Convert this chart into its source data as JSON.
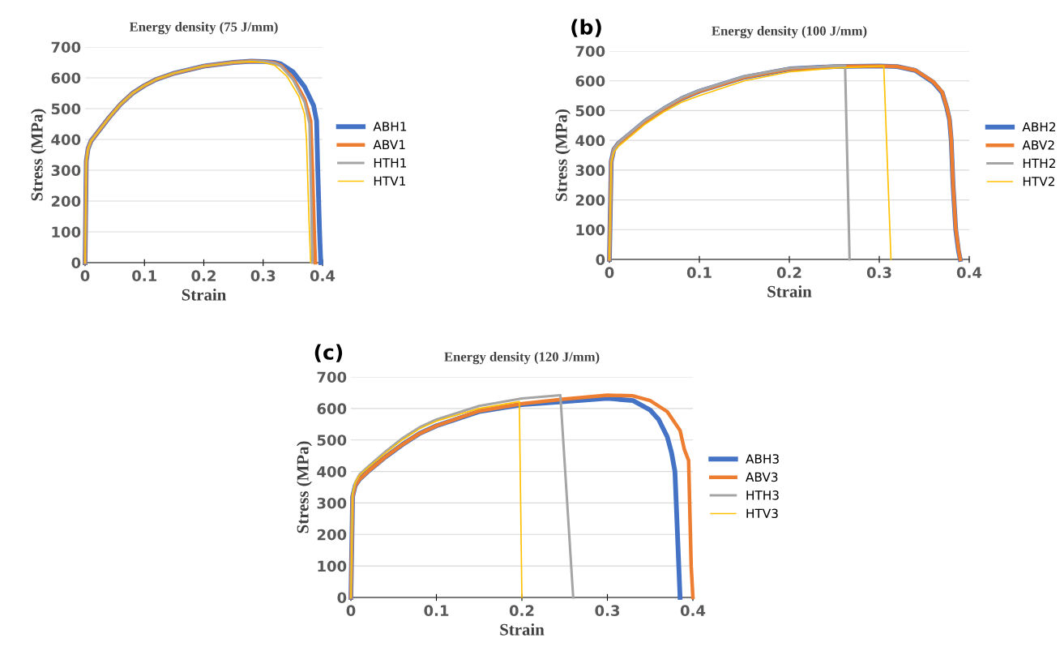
{
  "chart_data": [
    {
      "type": "line",
      "title": "Energy density (75 J/mm)",
      "xlabel": "Strain",
      "ylabel": "Stress (MPa)",
      "xlim": [
        0,
        0.4
      ],
      "ylim": [
        0,
        700
      ],
      "xticks": [
        0,
        0.1,
        0.2,
        0.3,
        0.4
      ],
      "yticks": [
        0,
        100,
        200,
        300,
        400,
        500,
        600,
        700
      ],
      "grid": "y",
      "legend": "right",
      "marker": "none",
      "line_style": "solid",
      "series": [
        {
          "name": "ABH1",
          "color": "#4472c4",
          "x": [
            0,
            0.002,
            0.005,
            0.01,
            0.02,
            0.04,
            0.06,
            0.08,
            0.1,
            0.12,
            0.15,
            0.2,
            0.25,
            0.28,
            0.3,
            0.32,
            0.33,
            0.35,
            0.37,
            0.385,
            0.39,
            0.392,
            0.395,
            0.397
          ],
          "values": [
            0,
            330,
            370,
            395,
            420,
            470,
            515,
            550,
            575,
            595,
            615,
            638,
            650,
            654,
            653,
            650,
            645,
            620,
            570,
            510,
            460,
            300,
            100,
            0
          ]
        },
        {
          "name": "ABV1",
          "color": "#ed7d31",
          "x": [
            0,
            0.002,
            0.005,
            0.01,
            0.02,
            0.04,
            0.06,
            0.08,
            0.1,
            0.12,
            0.15,
            0.2,
            0.25,
            0.28,
            0.3,
            0.32,
            0.33,
            0.35,
            0.37,
            0.38,
            0.383,
            0.386,
            0.388
          ],
          "values": [
            0,
            330,
            370,
            395,
            420,
            470,
            515,
            550,
            575,
            595,
            615,
            638,
            650,
            654,
            653,
            648,
            640,
            600,
            530,
            460,
            300,
            100,
            0
          ]
        },
        {
          "name": "HTH1",
          "color": "#a5a5a5",
          "x": [
            0,
            0.002,
            0.005,
            0.01,
            0.02,
            0.04,
            0.06,
            0.08,
            0.1,
            0.12,
            0.15,
            0.2,
            0.25,
            0.28,
            0.3,
            0.32,
            0.33,
            0.35,
            0.37,
            0.378,
            0.381,
            0.383
          ],
          "values": [
            0,
            330,
            370,
            395,
            420,
            470,
            515,
            550,
            575,
            595,
            615,
            638,
            650,
            654,
            653,
            647,
            638,
            595,
            520,
            450,
            200,
            0
          ]
        },
        {
          "name": "HTV1",
          "color": "#ffc000",
          "x": [
            0,
            0.002,
            0.005,
            0.01,
            0.02,
            0.04,
            0.06,
            0.08,
            0.1,
            0.12,
            0.15,
            0.2,
            0.25,
            0.28,
            0.3,
            0.32,
            0.34,
            0.36,
            0.37,
            0.373,
            0.377,
            0.38
          ],
          "values": [
            0,
            330,
            370,
            395,
            420,
            470,
            515,
            550,
            575,
            595,
            615,
            638,
            650,
            653,
            650,
            640,
            605,
            540,
            480,
            400,
            150,
            0
          ]
        }
      ]
    },
    {
      "type": "line",
      "title": "Energy density (100 J/mm)",
      "xlabel": "Strain",
      "ylabel": "Stress (MPa)",
      "xlim": [
        0,
        0.4
      ],
      "ylim": [
        0,
        700
      ],
      "xticks": [
        0,
        0.1,
        0.2,
        0.3,
        0.4
      ],
      "yticks": [
        0,
        100,
        200,
        300,
        400,
        500,
        600,
        700
      ],
      "grid": "y",
      "legend": "right",
      "marker": "none",
      "line_style": "solid",
      "annotations": [
        "(b)"
      ],
      "series": [
        {
          "name": "ABH2",
          "color": "#4472c4",
          "x": [
            0,
            0.002,
            0.005,
            0.01,
            0.02,
            0.04,
            0.06,
            0.08,
            0.1,
            0.15,
            0.2,
            0.25,
            0.3,
            0.32,
            0.34,
            0.36,
            0.37,
            0.375,
            0.378,
            0.38,
            0.382,
            0.385,
            0.388,
            0.39
          ],
          "values": [
            0,
            330,
            370,
            390,
            415,
            465,
            505,
            540,
            565,
            612,
            640,
            648,
            650,
            648,
            635,
            595,
            560,
            510,
            470,
            400,
            250,
            100,
            30,
            0
          ]
        },
        {
          "name": "ABV2",
          "color": "#ed7d31",
          "x": [
            0,
            0.002,
            0.005,
            0.01,
            0.02,
            0.04,
            0.06,
            0.08,
            0.1,
            0.15,
            0.2,
            0.25,
            0.3,
            0.32,
            0.34,
            0.36,
            0.37,
            0.375,
            0.378,
            0.38,
            0.382,
            0.385,
            0.388,
            0.39
          ],
          "values": [
            0,
            330,
            370,
            390,
            415,
            465,
            505,
            540,
            565,
            612,
            640,
            648,
            650,
            648,
            636,
            597,
            562,
            512,
            472,
            405,
            255,
            105,
            35,
            0
          ]
        },
        {
          "name": "HTH2",
          "color": "#a5a5a5",
          "x": [
            0,
            0.002,
            0.005,
            0.01,
            0.02,
            0.04,
            0.06,
            0.08,
            0.1,
            0.15,
            0.2,
            0.25,
            0.262,
            0.267
          ],
          "values": [
            0,
            330,
            370,
            392,
            418,
            468,
            508,
            543,
            568,
            615,
            642,
            650,
            650,
            0
          ]
        },
        {
          "name": "HTV2",
          "color": "#ffc000",
          "x": [
            0,
            0.002,
            0.005,
            0.01,
            0.02,
            0.04,
            0.06,
            0.08,
            0.1,
            0.15,
            0.2,
            0.25,
            0.305,
            0.313
          ],
          "values": [
            0,
            325,
            360,
            380,
            405,
            455,
            495,
            528,
            550,
            600,
            630,
            643,
            650,
            0
          ]
        }
      ]
    },
    {
      "type": "line",
      "title": "Energy density (120 J/mm)",
      "xlabel": "Strain",
      "ylabel": "Stress (MPa)",
      "xlim": [
        0,
        0.4
      ],
      "ylim": [
        0,
        700
      ],
      "xticks": [
        0,
        0.1,
        0.2,
        0.3,
        0.4
      ],
      "yticks": [
        0,
        100,
        200,
        300,
        400,
        500,
        600,
        700
      ],
      "grid": "y",
      "legend": "right",
      "marker": "none",
      "line_style": "solid",
      "annotations": [
        "(c)"
      ],
      "series": [
        {
          "name": "ABH3",
          "color": "#4472c4",
          "x": [
            0,
            0.002,
            0.005,
            0.01,
            0.02,
            0.04,
            0.06,
            0.08,
            0.1,
            0.15,
            0.2,
            0.25,
            0.3,
            0.33,
            0.35,
            0.36,
            0.37,
            0.375,
            0.379,
            0.385
          ],
          "values": [
            0,
            320,
            355,
            375,
            400,
            445,
            485,
            520,
            545,
            590,
            612,
            622,
            632,
            625,
            595,
            565,
            510,
            460,
            400,
            0
          ]
        },
        {
          "name": "ABV3",
          "color": "#ed7d31",
          "x": [
            0,
            0.002,
            0.005,
            0.01,
            0.02,
            0.04,
            0.06,
            0.08,
            0.1,
            0.15,
            0.2,
            0.25,
            0.3,
            0.33,
            0.35,
            0.37,
            0.385,
            0.39,
            0.395,
            0.398,
            0.4
          ],
          "values": [
            0,
            320,
            355,
            375,
            400,
            445,
            485,
            520,
            545,
            592,
            615,
            630,
            642,
            640,
            625,
            590,
            530,
            470,
            435,
            100,
            0
          ]
        },
        {
          "name": "HTH3",
          "color": "#a5a5a5",
          "x": [
            0,
            0.002,
            0.005,
            0.01,
            0.02,
            0.04,
            0.06,
            0.08,
            0.1,
            0.15,
            0.2,
            0.245,
            0.26
          ],
          "values": [
            0,
            330,
            365,
            390,
            415,
            462,
            505,
            540,
            565,
            608,
            632,
            642,
            0
          ]
        },
        {
          "name": "HTV3",
          "color": "#ffc000",
          "x": [
            0,
            0.002,
            0.005,
            0.01,
            0.02,
            0.04,
            0.06,
            0.08,
            0.1,
            0.15,
            0.197,
            0.2
          ],
          "values": [
            0,
            330,
            365,
            388,
            412,
            458,
            500,
            535,
            560,
            600,
            622,
            0
          ]
        }
      ]
    }
  ]
}
